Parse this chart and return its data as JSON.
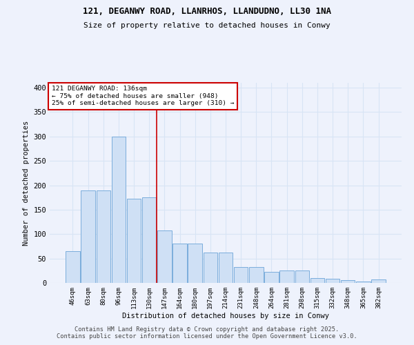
{
  "title1": "121, DEGANWY ROAD, LLANRHOS, LLANDUDNO, LL30 1NA",
  "title2": "Size of property relative to detached houses in Conwy",
  "xlabel": "Distribution of detached houses by size in Conwy",
  "ylabel": "Number of detached properties",
  "categories": [
    "46sqm",
    "63sqm",
    "80sqm",
    "96sqm",
    "113sqm",
    "130sqm",
    "147sqm",
    "164sqm",
    "180sqm",
    "197sqm",
    "214sqm",
    "231sqm",
    "248sqm",
    "264sqm",
    "281sqm",
    "298sqm",
    "315sqm",
    "332sqm",
    "348sqm",
    "365sqm",
    "382sqm"
  ],
  "values": [
    65,
    190,
    190,
    300,
    173,
    175,
    108,
    80,
    80,
    62,
    62,
    33,
    33,
    22,
    25,
    25,
    10,
    8,
    5,
    3,
    7
  ],
  "bar_color": "#cfe0f5",
  "bar_edge_color": "#7aaddc",
  "vline_x": 5.5,
  "vline_color": "#cc0000",
  "annotation_text": "121 DEGANWY ROAD: 136sqm\n← 75% of detached houses are smaller (948)\n25% of semi-detached houses are larger (310) →",
  "annotation_box_color": "#cc0000",
  "background_color": "#eef2fc",
  "grid_color": "#d8e4f5",
  "footer1": "Contains HM Land Registry data © Crown copyright and database right 2025.",
  "footer2": "Contains public sector information licensed under the Open Government Licence v3.0.",
  "ylim": [
    0,
    410
  ],
  "yticks": [
    0,
    50,
    100,
    150,
    200,
    250,
    300,
    350,
    400
  ]
}
